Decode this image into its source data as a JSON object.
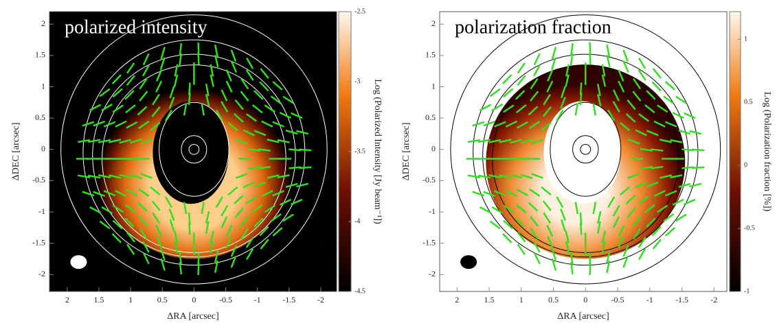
{
  "chart_data": [
    {
      "type": "image",
      "title": "polarized intensity",
      "background": "#000000",
      "title_color": "#ffffff",
      "contour_color": "#ffffff",
      "xlabel": "ΔRA [arcsec]",
      "ylabel": "ΔDEC [arcsec]",
      "xlim": [
        2.28,
        -2.25
      ],
      "ylim": [
        -2.27,
        2.2
      ],
      "xticks": [
        2,
        1.5,
        1,
        0.5,
        0,
        -0.5,
        -1,
        -1.5,
        -2
      ],
      "yticks": [
        2,
        1.5,
        1,
        0.5,
        0,
        -0.5,
        -1,
        -1.5,
        -2
      ],
      "colorbar": {
        "label": "Log (Polarized Intensity [Jy beam⁻¹])",
        "lim": [
          -4.5,
          -2.5
        ],
        "ticks": [
          -2.5,
          -3,
          -3.5,
          -4,
          -4.5
        ]
      }
    },
    {
      "type": "image",
      "title": "polarization fraction",
      "background": "#ffffff",
      "title_color": "#000000",
      "contour_color": "#000000",
      "xlabel": "ΔRA [arcsec]",
      "ylabel": "ΔDEC [arcsec]",
      "xlim": [
        2.27,
        -2.2
      ],
      "ylim": [
        -2.27,
        2.2
      ],
      "xticks": [
        2,
        1.5,
        1,
        0.5,
        0,
        -0.5,
        -1,
        -1.5,
        -2
      ],
      "yticks": [
        2,
        1.5,
        1,
        0.5,
        0,
        -0.5,
        -1,
        -1.5,
        -2
      ],
      "colorbar": {
        "label": "Log (Polarization fraction [%])",
        "lim": [
          -1,
          1.22
        ],
        "ticks": [
          1,
          0.5,
          0,
          -0.5,
          -1
        ]
      }
    }
  ]
}
